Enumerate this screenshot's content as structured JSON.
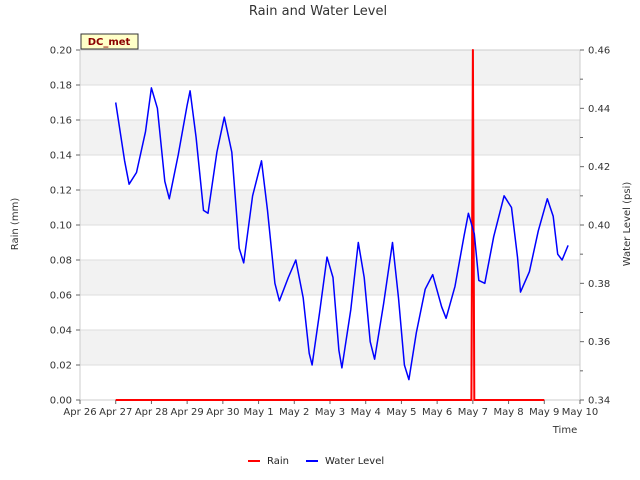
{
  "chart_data": {
    "type": "line",
    "title": "Rain and Water Level",
    "xlabel": "Time",
    "ylabel_left": "Rain (mm)",
    "ylabel_right": "Water Level (psi)",
    "station_label": "DC_met",
    "x_tick_labels": [
      "Apr 26",
      "Apr 27",
      "Apr 28",
      "Apr 29",
      "Apr 30",
      "May 1",
      "May 2",
      "May 3",
      "May 4",
      "May 5",
      "May 6",
      "May 7",
      "May 8",
      "May 9",
      "May 10"
    ],
    "y_left_ticks": [
      "0.00",
      "0.02",
      "0.04",
      "0.06",
      "0.08",
      "0.10",
      "0.12",
      "0.14",
      "0.16",
      "0.18",
      "0.20"
    ],
    "y_right_ticks": [
      "0.34",
      "0.36",
      "0.38",
      "0.40",
      "0.42",
      "0.44",
      "0.46"
    ],
    "ylim_left": [
      0,
      0.2
    ],
    "ylim_right": [
      0.34,
      0.46
    ],
    "grid": true,
    "legend_position": "bottom",
    "series": [
      {
        "name": "Rain",
        "axis": "left",
        "color": "#ff0000",
        "points": [
          [
            "2023-04-27",
            0.0
          ],
          [
            "2023-05-06 23:00",
            0.0
          ],
          [
            "2023-05-07 00:00",
            0.2
          ],
          [
            "2023-05-07 01:00",
            0.0
          ],
          [
            "2023-05-09",
            0.0
          ]
        ]
      },
      {
        "name": "Water Level",
        "axis": "right",
        "color": "#0000ff",
        "points": [
          [
            "2023-04-27 00:00",
            0.442
          ],
          [
            "2023-04-27 06:00",
            0.422
          ],
          [
            "2023-04-27 09:00",
            0.414
          ],
          [
            "2023-04-27 14:00",
            0.418
          ],
          [
            "2023-04-27 20:00",
            0.432
          ],
          [
            "2023-04-28 00:00",
            0.447
          ],
          [
            "2023-04-28 04:00",
            0.44
          ],
          [
            "2023-04-28 09:00",
            0.415
          ],
          [
            "2023-04-28 12:00",
            0.409
          ],
          [
            "2023-04-28 18:00",
            0.424
          ],
          [
            "2023-04-29 00:00",
            0.441
          ],
          [
            "2023-04-29 02:00",
            0.446
          ],
          [
            "2023-04-29 06:00",
            0.43
          ],
          [
            "2023-04-29 11:00",
            0.405
          ],
          [
            "2023-04-29 14:00",
            0.404
          ],
          [
            "2023-04-29 20:00",
            0.425
          ],
          [
            "2023-04-30 01:00",
            0.437
          ],
          [
            "2023-04-30 06:00",
            0.425
          ],
          [
            "2023-04-30 11:00",
            0.392
          ],
          [
            "2023-04-30 14:00",
            0.387
          ],
          [
            "2023-04-30 20:00",
            0.41
          ],
          [
            "2023-05-01 02:00",
            0.422
          ],
          [
            "2023-05-01 06:00",
            0.405
          ],
          [
            "2023-05-01 11:00",
            0.38
          ],
          [
            "2023-05-01 14:00",
            0.374
          ],
          [
            "2023-05-01 20:00",
            0.382
          ],
          [
            "2023-05-02 01:00",
            0.388
          ],
          [
            "2023-05-02 06:00",
            0.375
          ],
          [
            "2023-05-02 10:00",
            0.356
          ],
          [
            "2023-05-02 12:00",
            0.352
          ],
          [
            "2023-05-02 17:00",
            0.37
          ],
          [
            "2023-05-02 22:00",
            0.389
          ],
          [
            "2023-05-03 02:00",
            0.382
          ],
          [
            "2023-05-03 06:00",
            0.357
          ],
          [
            "2023-05-03 08:00",
            0.351
          ],
          [
            "2023-05-03 14:00",
            0.371
          ],
          [
            "2023-05-03 19:00",
            0.394
          ],
          [
            "2023-05-03 23:00",
            0.382
          ],
          [
            "2023-05-04 03:00",
            0.36
          ],
          [
            "2023-05-04 06:00",
            0.354
          ],
          [
            "2023-05-04 12:00",
            0.373
          ],
          [
            "2023-05-04 18:00",
            0.394
          ],
          [
            "2023-05-04 22:00",
            0.375
          ],
          [
            "2023-05-05 02:00",
            0.352
          ],
          [
            "2023-05-05 05:00",
            0.347
          ],
          [
            "2023-05-05 10:00",
            0.363
          ],
          [
            "2023-05-05 16:00",
            0.378
          ],
          [
            "2023-05-05 21:00",
            0.383
          ],
          [
            "2023-05-06 03:00",
            0.372
          ],
          [
            "2023-05-06 06:00",
            0.368
          ],
          [
            "2023-05-06 12:00",
            0.379
          ],
          [
            "2023-05-06 18:00",
            0.396
          ],
          [
            "2023-05-06 21:00",
            0.404
          ],
          [
            "2023-05-07 01:00",
            0.397
          ],
          [
            "2023-05-07 04:00",
            0.381
          ],
          [
            "2023-05-07 08:00",
            0.38
          ],
          [
            "2023-05-07 14:00",
            0.396
          ],
          [
            "2023-05-07 21:00",
            0.41
          ],
          [
            "2023-05-08 02:00",
            0.406
          ],
          [
            "2023-05-08 06:00",
            0.389
          ],
          [
            "2023-05-08 08:00",
            0.377
          ],
          [
            "2023-05-08 14:00",
            0.384
          ],
          [
            "2023-05-08 20:00",
            0.398
          ],
          [
            "2023-05-09 02:00",
            0.409
          ],
          [
            "2023-05-09 06:00",
            0.403
          ],
          [
            "2023-05-09 09:00",
            0.39
          ],
          [
            "2023-05-09 12:00",
            0.388
          ],
          [
            "2023-05-09 16:00",
            0.393
          ]
        ]
      }
    ]
  }
}
